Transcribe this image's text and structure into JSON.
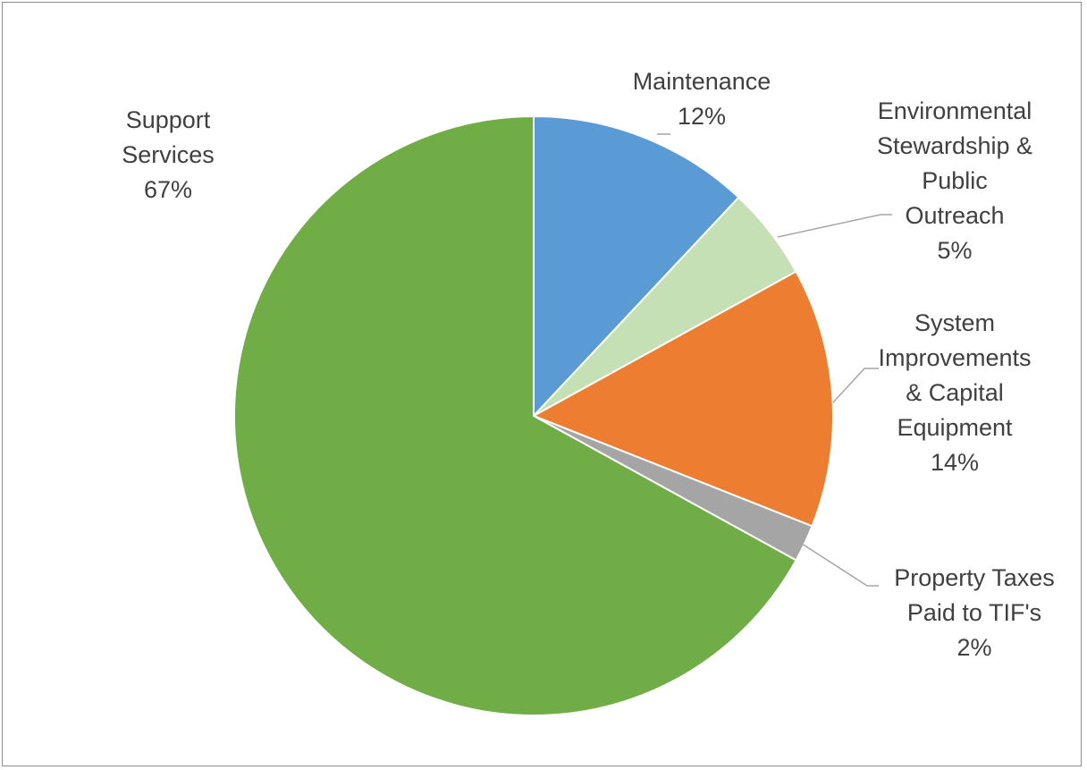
{
  "chart_data": {
    "type": "pie",
    "title": "",
    "slices": [
      {
        "name": "Maintenance",
        "label_lines": [
          "Maintenance"
        ],
        "value": 12,
        "value_label": "12%",
        "color": "#5b9bd5"
      },
      {
        "name": "Environmental Stewardship & Public Outreach",
        "label_lines": [
          "Environmental",
          "Stewardship &",
          "Public",
          "Outreach"
        ],
        "value": 5,
        "value_label": "5%",
        "color": "#c5e0b4"
      },
      {
        "name": "System Improvements & Capital Equipment",
        "label_lines": [
          "System",
          "Improvements",
          "& Capital",
          "Equipment"
        ],
        "value": 14,
        "value_label": "14%",
        "color": "#ed7d31"
      },
      {
        "name": "Property Taxes Paid to TIF's",
        "label_lines": [
          "Property Taxes",
          "Paid to TIF's"
        ],
        "value": 2,
        "value_label": "2%",
        "color": "#a5a5a5"
      },
      {
        "name": "Support Services",
        "label_lines": [
          "Support",
          "Services"
        ],
        "value": 67,
        "value_label": "67%",
        "color": "#70ad47"
      }
    ],
    "legend": "none",
    "data_labels": "outside with leader lines"
  }
}
